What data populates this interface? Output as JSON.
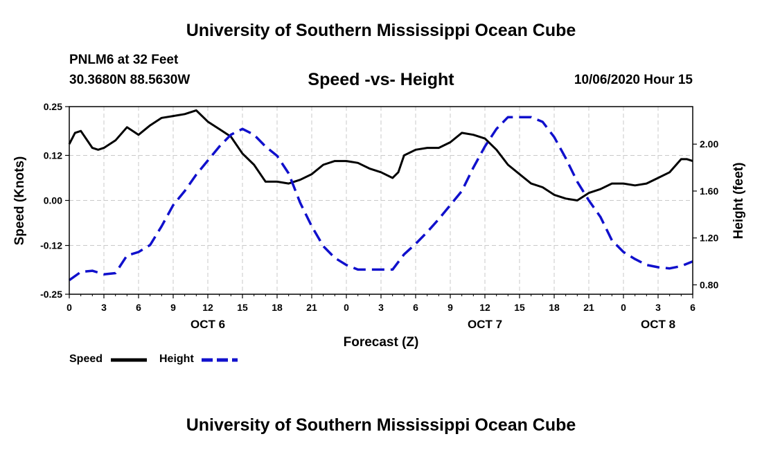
{
  "header": {
    "title": "University of Southern Mississippi Ocean Cube",
    "station": "PNLM6 at 32 Feet",
    "coordinates": "30.3680N 88.5630W",
    "datetime": "10/06/2020 Hour 15"
  },
  "footer": {
    "title": "University of Southern Mississippi Ocean Cube"
  },
  "legend": {
    "speed_label": "Speed",
    "height_label": "Height"
  },
  "colors": {
    "speed": "#000000",
    "height": "#1010cc",
    "grid": "#c8c8c8"
  },
  "chart_data": {
    "type": "line",
    "title": "Speed -vs- Height",
    "xlabel": "Forecast (Z)",
    "ylabel": "Speed (Knots)",
    "y2label": "Height (feet)",
    "xlim": [
      0,
      54
    ],
    "ylim": [
      -0.25,
      0.25
    ],
    "y2lim": [
      0.72,
      2.32
    ],
    "grid": true,
    "legend_position": "bottom-left",
    "x_ticks": [
      0,
      3,
      6,
      9,
      12,
      15,
      18,
      21,
      24,
      27,
      30,
      33,
      36,
      39,
      42,
      45,
      48,
      51,
      54
    ],
    "x_tick_labels": [
      "0",
      "3",
      "6",
      "9",
      "12",
      "15",
      "18",
      "21",
      "0",
      "3",
      "6",
      "9",
      "12",
      "15",
      "18",
      "21",
      "0",
      "3",
      "6"
    ],
    "y_ticks": [
      0.25,
      0.12,
      0.0,
      -0.12,
      -0.25
    ],
    "y_tick_labels": [
      "0.25",
      "0.12",
      "0.00",
      "-0.12",
      "-0.25"
    ],
    "y2_ticks": [
      2.0,
      1.6,
      1.2,
      0.8
    ],
    "y2_tick_labels": [
      "2.00",
      "1.60",
      "1.20",
      "0.80"
    ],
    "date_labels": [
      {
        "x": 12,
        "label": "OCT 6"
      },
      {
        "x": 36,
        "label": "OCT 7"
      },
      {
        "x": 51,
        "label": "OCT 8"
      }
    ],
    "series": [
      {
        "name": "Speed",
        "axis": "left",
        "style": "solid",
        "x": [
          0,
          0.5,
          1,
          2,
          2.5,
          3,
          4,
          5,
          5.5,
          6,
          7,
          8,
          9,
          10,
          11,
          12,
          13,
          14,
          15,
          16,
          17,
          18,
          19,
          20,
          21,
          22,
          23,
          24,
          25,
          26,
          27,
          28,
          28.5,
          29,
          30,
          31,
          32,
          33,
          34,
          35,
          36,
          37,
          38,
          39,
          40,
          41,
          42,
          43,
          44,
          45,
          46,
          47,
          48,
          49,
          50,
          51,
          52,
          53,
          53.5,
          54
        ],
        "y": [
          0.15,
          0.18,
          0.185,
          0.14,
          0.135,
          0.14,
          0.16,
          0.195,
          0.185,
          0.175,
          0.2,
          0.22,
          0.225,
          0.23,
          0.24,
          0.21,
          0.19,
          0.17,
          0.125,
          0.095,
          0.05,
          0.05,
          0.045,
          0.055,
          0.07,
          0.095,
          0.105,
          0.105,
          0.1,
          0.085,
          0.075,
          0.06,
          0.075,
          0.12,
          0.135,
          0.14,
          0.14,
          0.155,
          0.18,
          0.175,
          0.165,
          0.135,
          0.095,
          0.07,
          0.045,
          0.035,
          0.015,
          0.005,
          0.0,
          0.02,
          0.03,
          0.045,
          0.045,
          0.04,
          0.045,
          0.06,
          0.075,
          0.11,
          0.11,
          0.105
        ]
      },
      {
        "name": "Height",
        "axis": "right",
        "style": "dashed",
        "x": [
          0,
          1,
          2,
          3,
          4,
          5,
          6,
          7,
          8,
          9,
          10,
          11,
          12,
          13,
          14,
          15,
          16,
          17,
          18,
          19,
          20,
          21,
          22,
          23,
          24,
          25,
          26,
          27,
          28,
          29,
          30,
          31,
          32,
          33,
          34,
          35,
          36,
          37,
          38,
          39,
          40,
          41,
          42,
          43,
          44,
          45,
          46,
          47,
          48,
          49,
          50,
          51,
          52,
          53,
          54
        ],
        "y": [
          0.84,
          0.91,
          0.92,
          0.89,
          0.9,
          1.05,
          1.08,
          1.14,
          1.3,
          1.48,
          1.6,
          1.74,
          1.86,
          1.98,
          2.08,
          2.13,
          2.08,
          1.98,
          1.9,
          1.75,
          1.5,
          1.3,
          1.13,
          1.03,
          0.97,
          0.93,
          0.93,
          0.93,
          0.93,
          1.06,
          1.15,
          1.25,
          1.36,
          1.48,
          1.6,
          1.8,
          1.98,
          2.13,
          2.23,
          2.23,
          2.23,
          2.19,
          2.06,
          1.88,
          1.68,
          1.52,
          1.38,
          1.18,
          1.08,
          1.02,
          0.97,
          0.95,
          0.94,
          0.96,
          1.0
        ]
      }
    ]
  }
}
